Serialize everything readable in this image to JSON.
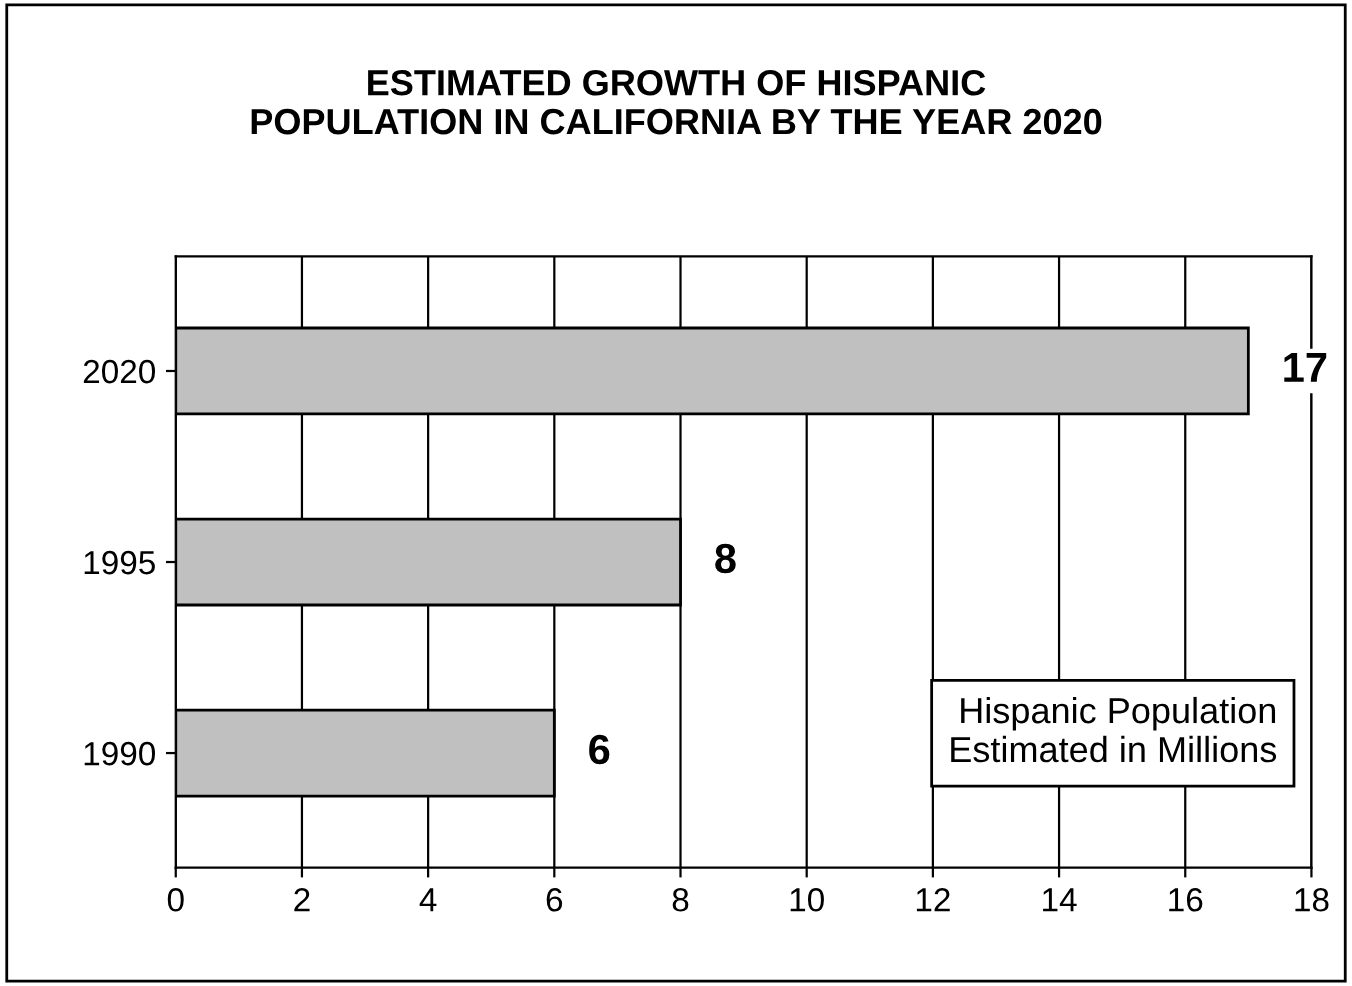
{
  "chart_data": {
    "type": "bar",
    "orientation": "horizontal",
    "title": "ESTIMATED GROWTH OF HISPANIC\nPOPULATION IN CALIFORNIA BY THE YEAR 2020",
    "categories": [
      "2020",
      "1995",
      "1990"
    ],
    "values": [
      17,
      8,
      6
    ],
    "color": "#c0c0c0",
    "xlim": [
      0,
      18
    ],
    "xticks": [
      0,
      2,
      4,
      6,
      8,
      10,
      12,
      14,
      16,
      18
    ],
    "grid": "x",
    "data_labels": true,
    "annotations": [
      "Hispanic Population\nEstimated in Millions"
    ]
  }
}
